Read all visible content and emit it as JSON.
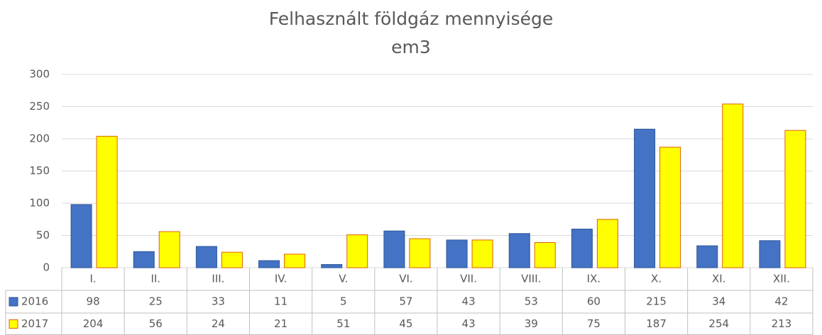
{
  "chart_data": {
    "type": "bar",
    "title": "Felhasznált földgáz mennyisége",
    "subtitle": "em3",
    "categories": [
      "I.",
      "II.",
      "III.",
      "IV.",
      "V.",
      "VI.",
      "VII.",
      "VIII.",
      "IX.",
      "X.",
      "XI.",
      "XII."
    ],
    "series": [
      {
        "name": "2016",
        "color": "#4472c4",
        "values": [
          98,
          25,
          33,
          11,
          5,
          57,
          43,
          53,
          60,
          215,
          34,
          42
        ]
      },
      {
        "name": "2017",
        "color": "#ffff00",
        "values": [
          204,
          56,
          24,
          21,
          51,
          45,
          43,
          39,
          75,
          187,
          254,
          213
        ]
      }
    ],
    "ylim": [
      0,
      300
    ],
    "yticks": [
      0,
      50,
      100,
      150,
      200,
      250,
      300
    ],
    "grid": true
  }
}
